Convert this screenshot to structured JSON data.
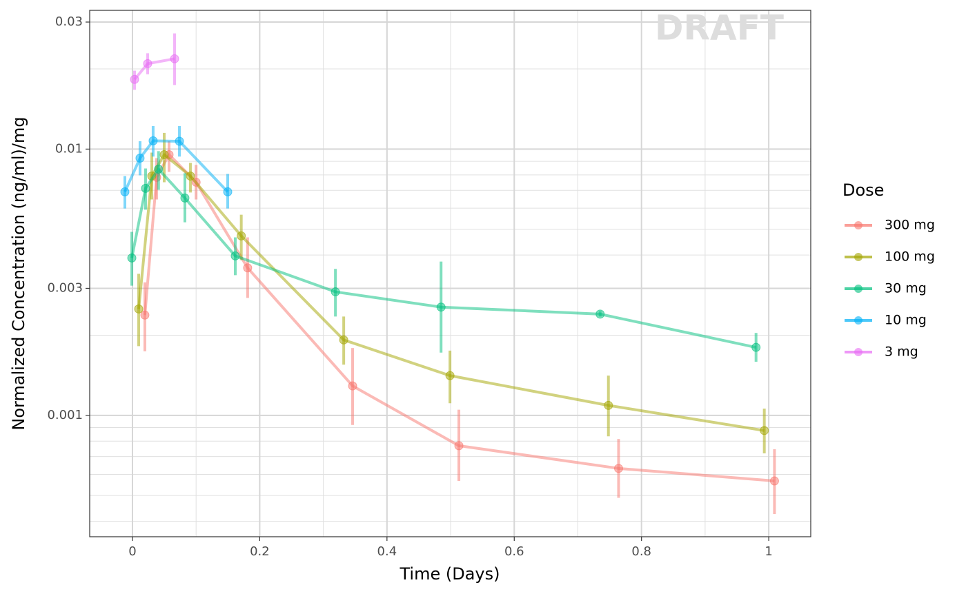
{
  "chart_data": {
    "type": "line",
    "xlabel": "Time (Days)",
    "ylabel": "Normalized Concentration (ng/ml)/mg",
    "watermark": "DRAFT",
    "legend_title": "Dose",
    "legend_position": "right",
    "yscale": "log",
    "grid": true,
    "xlim": [
      -0.0672,
      1.066
    ],
    "ylim": [
      0.00035,
      0.0332
    ],
    "xticks": [
      0,
      0.2,
      0.4,
      0.6,
      0.8,
      1
    ],
    "x_minor_grid": [
      0.1,
      0.3,
      0.5,
      0.7,
      0.9
    ],
    "yticks": [
      0.001,
      0.003,
      0.01,
      0.03
    ],
    "y_minor_grid": [
      0.0004,
      0.0005,
      0.0006,
      0.0007,
      0.0008,
      0.0009,
      0.002,
      0.004,
      0.005,
      0.006,
      0.007,
      0.008,
      0.009,
      0.02
    ],
    "series": [
      {
        "name": "300 mg",
        "color": "#F8766D",
        "x": [
          0.0195,
          0.038,
          0.0575,
          0.1,
          0.181,
          0.346,
          0.513,
          0.764,
          1.009
        ],
        "values": [
          0.00238,
          0.00783,
          0.00953,
          0.00751,
          0.00358,
          0.00129,
          0.000769,
          0.000632,
          0.000567
        ],
        "lower": [
          0.00174,
          0.00647,
          0.00821,
          0.00647,
          0.00276,
          0.00092,
          0.000567,
          0.00049,
          0.000426
        ],
        "upper": [
          0.00316,
          0.00925,
          0.0107,
          0.00872,
          0.00466,
          0.00179,
          0.00105,
          0.000815,
          0.000746
        ]
      },
      {
        "name": "100 mg",
        "color": "#A3A500",
        "x": [
          0.0098,
          0.0304,
          0.0499,
          0.0911,
          0.171,
          0.332,
          0.499,
          0.748,
          0.993
        ],
        "values": [
          0.00251,
          0.00792,
          0.00953,
          0.00792,
          0.00472,
          0.00192,
          0.00141,
          0.00109,
          0.000877
        ],
        "lower": [
          0.00182,
          0.00647,
          0.00751,
          0.00687,
          0.00383,
          0.00155,
          0.00111,
          0.000834,
          0.00072
        ],
        "upper": [
          0.0034,
          0.0097,
          0.0115,
          0.00888,
          0.00567,
          0.00235,
          0.00175,
          0.00141,
          0.00106
        ]
      },
      {
        "name": "30 mg",
        "color": "#00BF7D",
        "x": [
          -0.001,
          0.0206,
          0.041,
          0.0824,
          0.1616,
          0.319,
          0.485,
          0.735,
          0.98
        ],
        "values": [
          0.0039,
          0.00712,
          0.00841,
          0.00655,
          0.00397,
          0.00291,
          0.00255,
          0.0024,
          0.0018
        ],
        "lower": [
          0.00307,
          0.00592,
          0.00703,
          0.00531,
          0.00336,
          0.00235,
          0.00172,
          0.00235,
          0.00159
        ],
        "upper": [
          0.00489,
          0.00846,
          0.00982,
          0.00812,
          0.00466,
          0.00355,
          0.00378,
          0.00246,
          0.00204
        ]
      },
      {
        "name": "10 mg",
        "color": "#00B0F6",
        "x": [
          -0.0119,
          0.0119,
          0.0325,
          0.0738,
          0.1497
        ],
        "values": [
          0.00691,
          0.00925,
          0.01074,
          0.0107,
          0.00691
        ],
        "lower": [
          0.00598,
          0.00797,
          0.00937,
          0.00937,
          0.00598
        ],
        "upper": [
          0.00792,
          0.0107,
          0.0122,
          0.0122,
          0.00807
        ]
      },
      {
        "name": "3 mg",
        "color": "#E76BF3",
        "x": [
          0.0033,
          0.0239,
          0.0662
        ],
        "values": [
          0.01827,
          0.02094,
          0.02184
        ],
        "lower": [
          0.0167,
          0.0191,
          0.0174
        ],
        "upper": [
          0.0197,
          0.0229,
          0.0272
        ]
      }
    ]
  }
}
